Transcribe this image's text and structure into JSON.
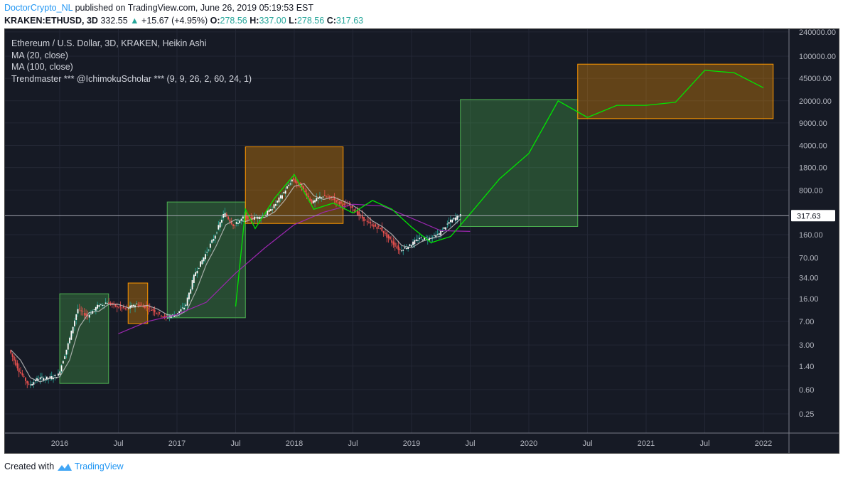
{
  "header": {
    "author": "DoctorCrypto_NL",
    "published": "published on TradingView.com, June 26, 2019 05:19:53 EST",
    "symbol": "KRAKEN:ETHUSD, 3D",
    "last": "332.55",
    "change": "+15.67 (+4.95%)",
    "o_label": "O:",
    "o": "278.56",
    "h_label": "H:",
    "h": "337.00",
    "l_label": "L:",
    "l": "278.56",
    "c_label": "C:",
    "c": "317.63"
  },
  "legend": {
    "title": "Ethereum / U.S. Dollar, 3D, KRAKEN, Heikin Ashi",
    "ma20": "MA (20, close)",
    "ma100": "MA (100, close)",
    "indicator": "Trendmaster *** @IchimokuScholar *** (9, 9, 26, 2, 60, 24, 1)"
  },
  "footer": {
    "created": "Created with",
    "brand": "TradingView"
  },
  "colors": {
    "up": "#26a69a",
    "down": "#ef5350",
    "bg": "#161a25",
    "ma20": "#c8c8c8",
    "ma100": "#9c27b0",
    "trend": "#00e600",
    "box_green": "#4caf50",
    "box_orange": "#ff9800",
    "price_line": "#b2b5be"
  },
  "chart_data": {
    "type": "line",
    "title": "Ethereum / U.S. Dollar, 3D, KRAKEN, Heikin Ashi",
    "y_scale": "log",
    "y_ticks": [
      "240000.00",
      "100000.00",
      "45000.00",
      "20000.00",
      "9000.00",
      "4000.00",
      "1800.00",
      "800.00",
      "160.00",
      "70.00",
      "34.00",
      "16.00",
      "7.00",
      "3.00",
      "1.40",
      "0.60",
      "0.25"
    ],
    "x_ticks": [
      "2016",
      "Jul",
      "2017",
      "Jul",
      "2018",
      "Jul",
      "2019",
      "Jul",
      "2020",
      "Jul",
      "2021",
      "Jul",
      "2022"
    ],
    "last_price_label": "317.63",
    "price": {
      "name": "ETHUSD",
      "x": [
        "2015-08",
        "2015-09",
        "2015-10",
        "2015-11",
        "2015-12",
        "2016-01",
        "2016-02",
        "2016-03",
        "2016-04",
        "2016-05",
        "2016-06",
        "2016-07",
        "2016-08",
        "2016-09",
        "2016-10",
        "2016-11",
        "2016-12",
        "2017-01",
        "2017-02",
        "2017-03",
        "2017-04",
        "2017-05",
        "2017-06",
        "2017-07",
        "2017-08",
        "2017-09",
        "2017-10",
        "2017-11",
        "2017-12",
        "2018-01",
        "2018-02",
        "2018-03",
        "2018-04",
        "2018-05",
        "2018-06",
        "2018-07",
        "2018-08",
        "2018-09",
        "2018-10",
        "2018-11",
        "2018-12",
        "2019-01",
        "2019-02",
        "2019-03",
        "2019-04",
        "2019-05",
        "2019-06"
      ],
      "y": [
        2.5,
        1.2,
        0.7,
        0.9,
        0.9,
        1.0,
        3.0,
        11,
        8.5,
        12,
        14,
        12,
        11,
        13,
        12,
        10,
        8,
        9,
        12,
        40,
        75,
        150,
        350,
        220,
        300,
        290,
        310,
        430,
        700,
        1200,
        850,
        500,
        650,
        600,
        480,
        440,
        300,
        230,
        200,
        130,
        90,
        110,
        140,
        140,
        165,
        250,
        317
      ]
    },
    "ma100": {
      "name": "MA (100, close)",
      "x": [
        "2016-07",
        "2016-10",
        "2017-01",
        "2017-04",
        "2017-07",
        "2017-10",
        "2018-01",
        "2018-04",
        "2018-07",
        "2018-10",
        "2019-01",
        "2019-04",
        "2019-07"
      ],
      "y": [
        4.5,
        7,
        9,
        14,
        40,
        100,
        230,
        360,
        480,
        450,
        290,
        185,
        180
      ]
    },
    "trendmaster": {
      "name": "Trendmaster",
      "x": [
        "2017-07",
        "2017-08",
        "2017-09",
        "2017-11",
        "2018-01",
        "2018-03",
        "2018-05",
        "2018-07",
        "2018-09",
        "2018-11",
        "2019-01",
        "2019-03",
        "2019-05",
        "2019-07",
        "2019-10",
        "2020-01",
        "2020-04",
        "2020-07",
        "2020-10",
        "2021-01",
        "2021-04",
        "2021-07",
        "2021-10",
        "2022-01"
      ],
      "y": [
        12,
        400,
        200,
        600,
        1400,
        400,
        500,
        350,
        550,
        400,
        210,
        120,
        150,
        340,
        1200,
        3000,
        20000,
        11000,
        17000,
        17000,
        19000,
        60000,
        55000,
        32000
      ]
    },
    "boxes": [
      {
        "color": "green",
        "x0": "2016-01",
        "x1": "2016-06",
        "y0": 0.75,
        "y1": 19
      },
      {
        "color": "orange",
        "x0": "2016-08",
        "x1": "2016-10",
        "y0": 6.5,
        "y1": 28
      },
      {
        "color": "green",
        "x0": "2016-12",
        "x1": "2017-08",
        "y0": 8,
        "y1": 520
      },
      {
        "color": "orange",
        "x0": "2017-08",
        "x1": "2018-06",
        "y0": 240,
        "y1": 3800
      },
      {
        "color": "green",
        "x0": "2019-06",
        "x1": "2020-06",
        "y0": 215,
        "y1": 21000
      },
      {
        "color": "orange",
        "x0": "2020-06",
        "x1": "2022-02",
        "y0": 10500,
        "y1": 75000
      }
    ]
  }
}
